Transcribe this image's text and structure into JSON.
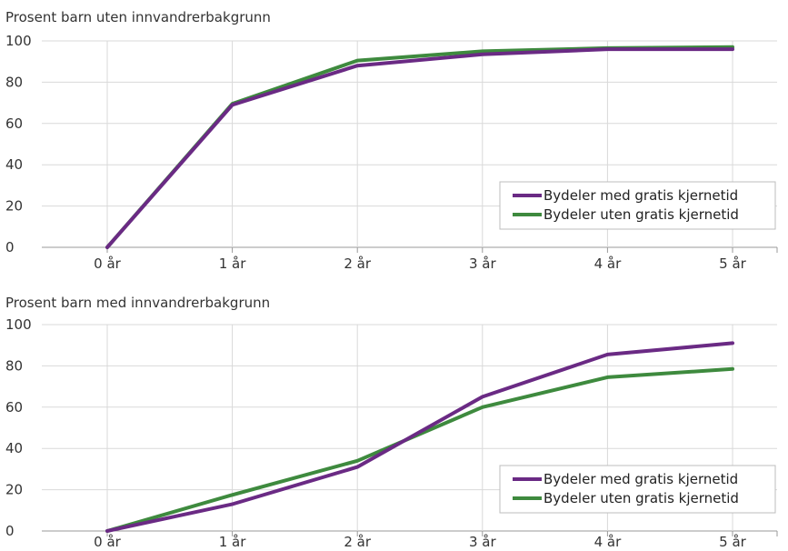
{
  "colors": {
    "series_med": "#6a2a84",
    "series_uten": "#3e8a3e"
  },
  "chart_data": [
    {
      "type": "line",
      "title": "Prosent barn uten innvandrerbakgrunn",
      "categories": [
        "0 år",
        "1 år",
        "2 år",
        "3 år",
        "4 år",
        "5 år"
      ],
      "ylim": [
        0,
        100
      ],
      "yticks": [
        0,
        20,
        40,
        60,
        80,
        100
      ],
      "grid": true,
      "legend": "bottom-right",
      "series": [
        {
          "name": "Bydeler med gratis kjernetid",
          "values": [
            0,
            69,
            88,
            93.5,
            96,
            96
          ]
        },
        {
          "name": "Bydeler uten gratis kjernetid",
          "values": [
            0,
            69.5,
            90.5,
            95,
            96.5,
            97
          ]
        }
      ]
    },
    {
      "type": "line",
      "title": "Prosent barn med innvandrerbakgrunn",
      "categories": [
        "0 år",
        "1 år",
        "2 år",
        "3 år",
        "4 år",
        "5 år"
      ],
      "ylim": [
        0,
        100
      ],
      "yticks": [
        0,
        20,
        40,
        60,
        80,
        100
      ],
      "grid": true,
      "legend": "bottom-right",
      "series": [
        {
          "name": "Bydeler med gratis kjernetid",
          "values": [
            0,
            13,
            31,
            65,
            85.5,
            91
          ]
        },
        {
          "name": "Bydeler uten gratis kjernetid",
          "values": [
            0,
            17.5,
            34,
            60,
            74.5,
            78.5
          ]
        }
      ]
    }
  ]
}
